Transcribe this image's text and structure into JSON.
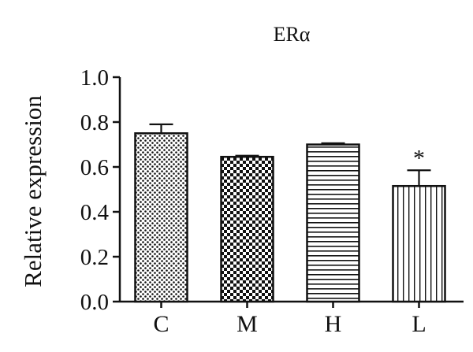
{
  "chart_data": {
    "type": "bar",
    "title": "ERα",
    "ylabel": "Relative expression",
    "xlabel": "",
    "categories": [
      "C",
      "M",
      "H",
      "L"
    ],
    "values": [
      0.75,
      0.645,
      0.7,
      0.515
    ],
    "errors": [
      0.04,
      0.005,
      0.006,
      0.07
    ],
    "annotations": [
      "",
      "",
      "",
      "*"
    ],
    "patterns": [
      "dots",
      "checkerboard",
      "horizontal-lines",
      "vertical-lines"
    ],
    "ylim": [
      0.0,
      1.0
    ],
    "yticks": [
      "0.0",
      "0.2",
      "0.4",
      "0.6",
      "0.8",
      "1.0"
    ],
    "grid": false,
    "legend": "none",
    "colors": {
      "bar_stroke": "#111111",
      "fill": "#ffffff",
      "ink": "#111111"
    }
  }
}
